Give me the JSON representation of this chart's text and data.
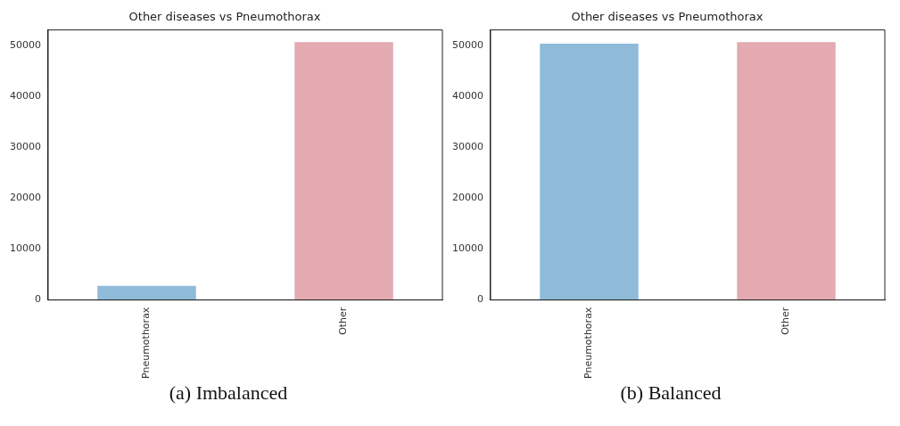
{
  "chart_data": [
    {
      "type": "bar",
      "title": "Other diseases vs Pneumothorax",
      "categories": [
        "Pneumothorax",
        "Other"
      ],
      "values": [
        2800,
        50700
      ],
      "colors": [
        "#8fbbd9",
        "#e3aab2"
      ],
      "ylim": [
        0,
        53100
      ],
      "yticks": [
        0,
        10000,
        20000,
        30000,
        40000,
        50000
      ],
      "grid": false,
      "annotations": [
        "(a) Imbalanced"
      ]
    },
    {
      "type": "bar",
      "title": "Other diseases vs Pneumothorax",
      "categories": [
        "Pneumothorax",
        "Other"
      ],
      "values": [
        50400,
        50700
      ],
      "colors": [
        "#8fbbd9",
        "#e3aab2"
      ],
      "ylim": [
        0,
        53100
      ],
      "yticks": [
        0,
        10000,
        20000,
        30000,
        40000,
        50000
      ],
      "grid": false,
      "annotations": [
        "(b) Balanced"
      ]
    }
  ]
}
